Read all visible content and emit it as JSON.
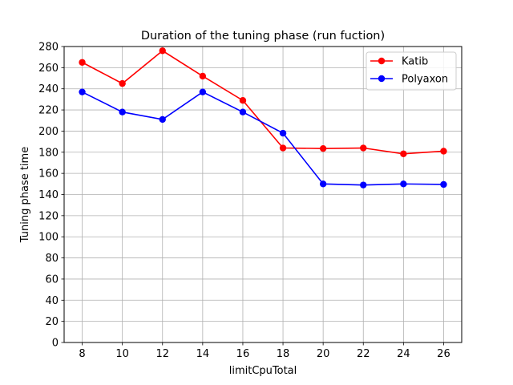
{
  "chart_data": {
    "type": "line",
    "title": "Duration of the tuning phase (run fuction)",
    "xlabel": "limitCpuTotal",
    "ylabel": "Tuning phase time",
    "x": [
      8,
      10,
      12,
      14,
      16,
      18,
      20,
      22,
      24,
      26
    ],
    "xticks": [
      8,
      10,
      12,
      14,
      16,
      18,
      20,
      22,
      24,
      26
    ],
    "yticks": [
      0,
      20,
      40,
      60,
      80,
      100,
      120,
      140,
      160,
      180,
      200,
      220,
      240,
      260,
      280
    ],
    "xlim": [
      7.1,
      26.9
    ],
    "ylim": [
      0,
      280
    ],
    "grid": true,
    "legend_position": "top-right",
    "series": [
      {
        "name": "Katib",
        "color": "#ff0000",
        "values": [
          265,
          245,
          276,
          252,
          229,
          184,
          183.5,
          184,
          178.5,
          181
        ]
      },
      {
        "name": "Polyaxon",
        "color": "#0000ff",
        "values": [
          237,
          218,
          211,
          237,
          218,
          198,
          150,
          149,
          150,
          149.5
        ]
      }
    ]
  }
}
